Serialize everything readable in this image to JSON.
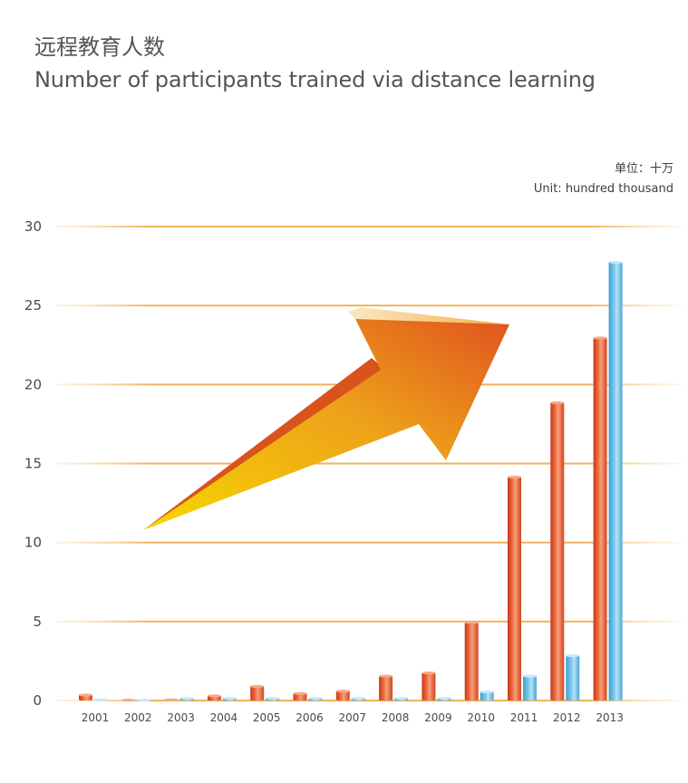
{
  "header": {
    "title_cn": "远程教育人数",
    "title_en": "Number of participants trained via distance learning"
  },
  "unit": {
    "cn": "单位：十万",
    "en": "Unit: hundred thousand"
  },
  "colors": {
    "series_orange": "#e0522a",
    "series_blue": "#5bb8e2",
    "gridline": "#f1c27a",
    "arrow_start": "#f5d000",
    "arrow_end": "#e2561f"
  },
  "chart_data": {
    "type": "bar",
    "categories": [
      "2001",
      "2002",
      "2003",
      "2004",
      "2005",
      "2006",
      "2007",
      "2008",
      "2009",
      "2010",
      "2011",
      "2012",
      "2013"
    ],
    "series": [
      {
        "values": [
          0.4,
          0.05,
          0.1,
          0.35,
          0.95,
          0.5,
          0.65,
          1.6,
          1.8,
          5.0,
          14.2,
          18.9,
          23.0
        ]
      },
      {
        "values": [
          0.1,
          0.03,
          0.2,
          0.2,
          0.2,
          0.2,
          0.2,
          0.2,
          0.2,
          0.6,
          1.6,
          2.9,
          27.8
        ]
      }
    ],
    "ylim": [
      0,
      30
    ],
    "yticks": [
      0,
      5,
      10,
      15,
      20,
      25,
      30
    ],
    "grid": true,
    "decoration": "upward-trend-arrow"
  }
}
